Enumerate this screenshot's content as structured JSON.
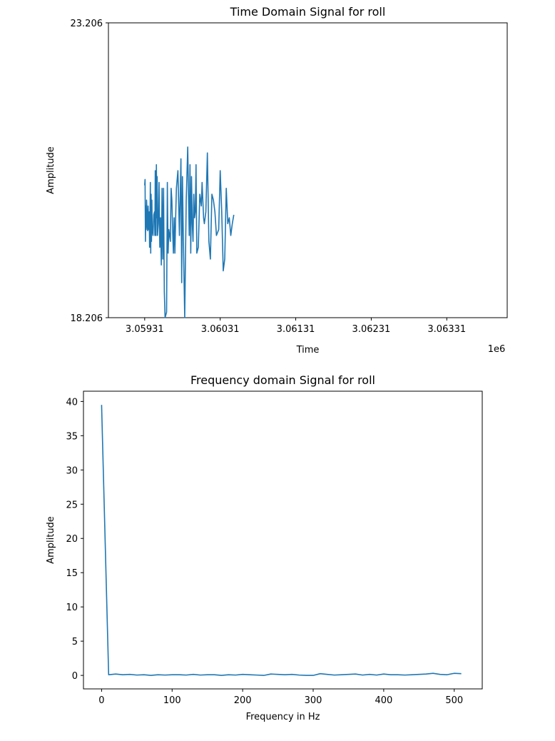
{
  "chart_data": [
    {
      "type": "line",
      "title": "Time Domain Signal for roll",
      "xlabel": "Time",
      "ylabel": "Amplitude",
      "x_offset_label": "1e6",
      "x_ticks": [
        "3.05931",
        "3.06031",
        "3.06131",
        "3.06231",
        "3.06331"
      ],
      "y_ticks": [
        "18.206",
        "23.206"
      ],
      "xlim": [
        3.05883,
        3.06411
      ],
      "ylim": [
        18.206,
        23.206
      ],
      "color": "#1f77b4",
      "series": [
        {
          "x": [
            3.05931,
            3.059315,
            3.05932,
            3.059325,
            3.05933,
            3.059335,
            3.05934,
            3.059345,
            3.05935,
            3.059355,
            3.05936,
            3.059365,
            3.05937,
            3.059375,
            3.05938,
            3.059385,
            3.05939,
            3.059395,
            3.0594,
            3.059405,
            3.05941,
            3.05942,
            3.05943,
            3.05944,
            3.059445,
            3.05945,
            3.059455,
            3.05946,
            3.059465,
            3.05947,
            3.059475,
            3.05948,
            3.05949,
            3.0595,
            3.05951,
            3.05952,
            3.05953,
            3.05954,
            3.05955,
            3.05956,
            3.05957,
            3.05958,
            3.0596,
            3.05961,
            3.05962,
            3.05963,
            3.05965,
            3.05966,
            3.05967,
            3.05968,
            3.05969,
            3.0597,
            3.05971,
            3.05972,
            3.05973,
            3.05975,
            3.05977,
            3.05979,
            3.0598,
            3.05981,
            3.05982,
            3.05984,
            3.05986,
            3.05988,
            3.05989,
            3.0599,
            3.05991,
            3.05992,
            3.05993,
            3.05994,
            3.05995,
            3.05996,
            3.05997,
            3.05998,
            3.05999,
            3.06,
            3.06002,
            3.06004,
            3.06006,
            3.06007,
            3.06009,
            3.0601,
            3.06012,
            3.06014,
            3.06016,
            3.06018,
            3.0602,
            3.06022,
            3.06024,
            3.06026,
            3.06029,
            3.06031,
            3.06033,
            3.06035,
            3.06037,
            3.06039,
            3.06041,
            3.06043,
            3.06045,
            3.06047,
            3.06049
          ],
          "y": [
            20.45,
            20.55,
            19.5,
            20.1,
            19.7,
            20.2,
            20.0,
            19.75,
            19.68,
            20.1,
            19.9,
            19.7,
            20.0,
            19.4,
            19.8,
            20.5,
            19.3,
            20.3,
            19.5,
            20.2,
            19.7,
            19.6,
            19.95,
            20.0,
            19.6,
            20.7,
            20.0,
            19.6,
            20.8,
            19.9,
            20.6,
            19.6,
            19.8,
            20.5,
            19.4,
            19.9,
            19.1,
            20.4,
            19.2,
            20.4,
            18.65,
            18.206,
            18.3,
            20.5,
            19.3,
            19.7,
            19.5,
            20.4,
            20.2,
            19.7,
            19.3,
            19.9,
            19.3,
            19.9,
            20.4,
            20.7,
            19.6,
            20.9,
            18.8,
            20.6,
            19.7,
            18.206,
            20.2,
            21.1,
            20.3,
            19.6,
            20.8,
            19.3,
            20.6,
            19.8,
            19.5,
            20.3,
            19.9,
            20.0,
            20.8,
            19.3,
            19.4,
            20.3,
            20.1,
            20.5,
            19.9,
            19.8,
            20.0,
            21.0,
            19.5,
            19.2,
            20.3,
            20.2,
            20.0,
            19.6,
            19.7,
            20.7,
            20.0,
            19.0,
            19.2,
            20.4,
            19.8,
            19.9,
            19.6,
            19.8,
            19.95
          ]
        }
      ]
    },
    {
      "type": "line",
      "title": "Frequency domain Signal for roll",
      "xlabel": "Frequency in Hz",
      "ylabel": "Amplitude",
      "x_ticks": [
        0,
        100,
        200,
        300,
        400,
        500
      ],
      "y_ticks": [
        0,
        5,
        10,
        15,
        20,
        25,
        30,
        35,
        40
      ],
      "xlim": [
        -25.7,
        539.7
      ],
      "ylim": [
        -1.97,
        41.5
      ],
      "color": "#1f77b4",
      "series": [
        {
          "x": [
            0,
            10,
            20,
            30,
            40,
            50,
            60,
            70,
            80,
            90,
            100,
            110,
            120,
            130,
            140,
            150,
            160,
            170,
            180,
            190,
            200,
            210,
            220,
            230,
            240,
            250,
            260,
            270,
            280,
            290,
            300,
            310,
            320,
            330,
            340,
            350,
            360,
            370,
            380,
            390,
            400,
            410,
            420,
            430,
            440,
            450,
            460,
            470,
            480,
            490,
            500,
            510
          ],
          "y": [
            39.5,
            0.1,
            0.2,
            0.1,
            0.15,
            0.05,
            0.1,
            0.0,
            0.1,
            0.05,
            0.1,
            0.1,
            0.05,
            0.15,
            0.05,
            0.1,
            0.1,
            0.0,
            0.1,
            0.05,
            0.15,
            0.1,
            0.05,
            0.0,
            0.2,
            0.15,
            0.1,
            0.15,
            0.05,
            0.0,
            0.0,
            0.25,
            0.15,
            0.05,
            0.1,
            0.15,
            0.2,
            0.05,
            0.15,
            0.05,
            0.2,
            0.1,
            0.1,
            0.05,
            0.1,
            0.15,
            0.2,
            0.3,
            0.15,
            0.1,
            0.3,
            0.25
          ]
        }
      ]
    }
  ]
}
